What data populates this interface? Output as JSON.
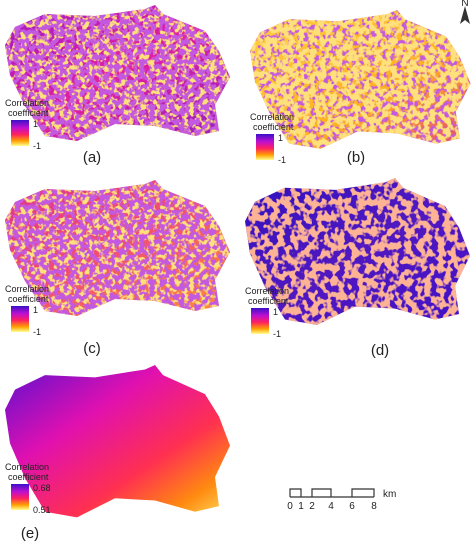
{
  "panels": [
    {
      "label": "(a)",
      "legend": {
        "title_lines": [
          "Correlation",
          "coefficient"
        ],
        "max": "1",
        "min": "-1"
      }
    },
    {
      "label": "(b)",
      "legend": {
        "title_lines": [
          "Correlation",
          "coefficient"
        ],
        "max": "1",
        "min": "-1"
      }
    },
    {
      "label": "(c)",
      "legend": {
        "title_lines": [
          "Correlation",
          "coefficient"
        ],
        "max": "1",
        "min": "-1"
      }
    },
    {
      "label": "(d)",
      "legend": {
        "title_lines": [
          "Correlation",
          "coefficient"
        ],
        "max": "1",
        "min": "-1"
      }
    },
    {
      "label": "(e)",
      "legend": {
        "title_lines": [
          "Correlation",
          "coefficient"
        ],
        "max": "0.68",
        "min": "0.51"
      }
    }
  ],
  "scale_bar": {
    "ticks": [
      "0",
      "1",
      "2",
      "4",
      "6",
      "8"
    ],
    "unit": "km"
  },
  "north": "N"
}
